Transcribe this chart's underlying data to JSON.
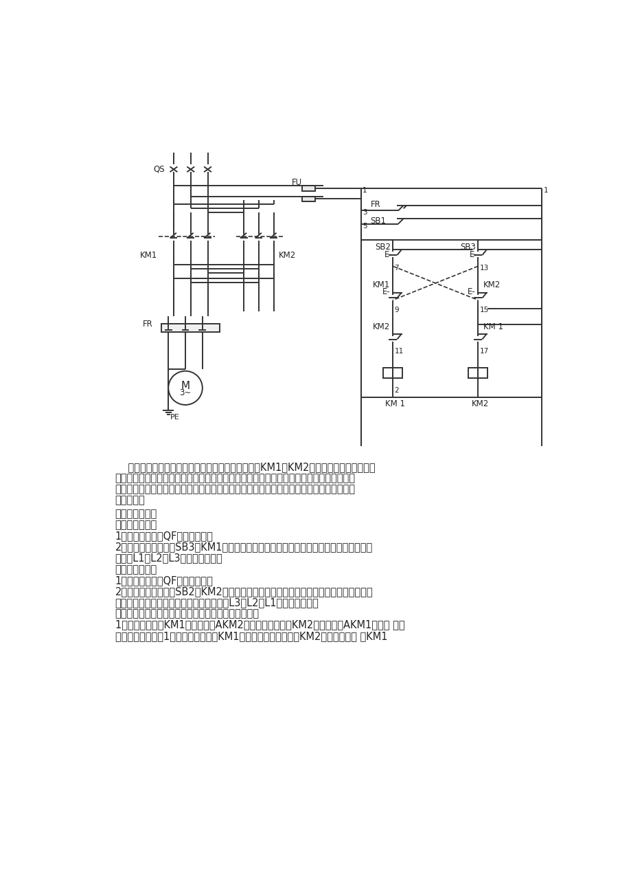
{
  "bg_color": "#ffffff",
  "line_color": "#333333",
  "text_color": "#222222",
  "para1": "    为了使电动机能够正转和反转，可采用两只接触器KM1、KM2换接电动机三相电源的相",
  "para1b": "序，但两个接触器不能吸合，如果同时吸合将造成电源的短路事故，为了防止这种事故，在",
  "para1c": "电路中应采取可靠的互锁，上图为采用按钮和接触器双重互锁的电动机正、反两方向运行的",
  "para1d": "控制电路。",
  "para2": "线路分析如下：",
  "para3": "一、正向启动：",
  "para4": "1、合上空气开关QF接通三相电源",
  "para5a": "2、按下正向启动按钮SB3，KM1通电吸合并自锁，主触头闭合接通电动机，电动机这时的",
  "para5b": "相序是L1、L2、L3，即正向运行。",
  "para6": "二、反向启动：",
  "para7": "1、合上空气开关QF接通三相电源",
  "para8a": "2、按下反向启动按钮SB2，KM2通电吸合并通过辅助触点自锁，常开主触头闭合换接了电",
  "para8b": "动机三相的电源相序，这时电动机的相序是L3、L2、L1，即反向运行。",
  "para9": "三、互锁环节：具有禁止功能在线路中起安全保护作用",
  "para10a": "1、接触器互锁：KM1线圈回路串AKM2的常闭辅助触点，KM2线圈回路串AKM1的常闭 触点",
  "para10b": "。当正转接触器四1线圈通电动作后，KM1的辅助常闭触点断开了KM2线圈回路，若 使KM1"
}
